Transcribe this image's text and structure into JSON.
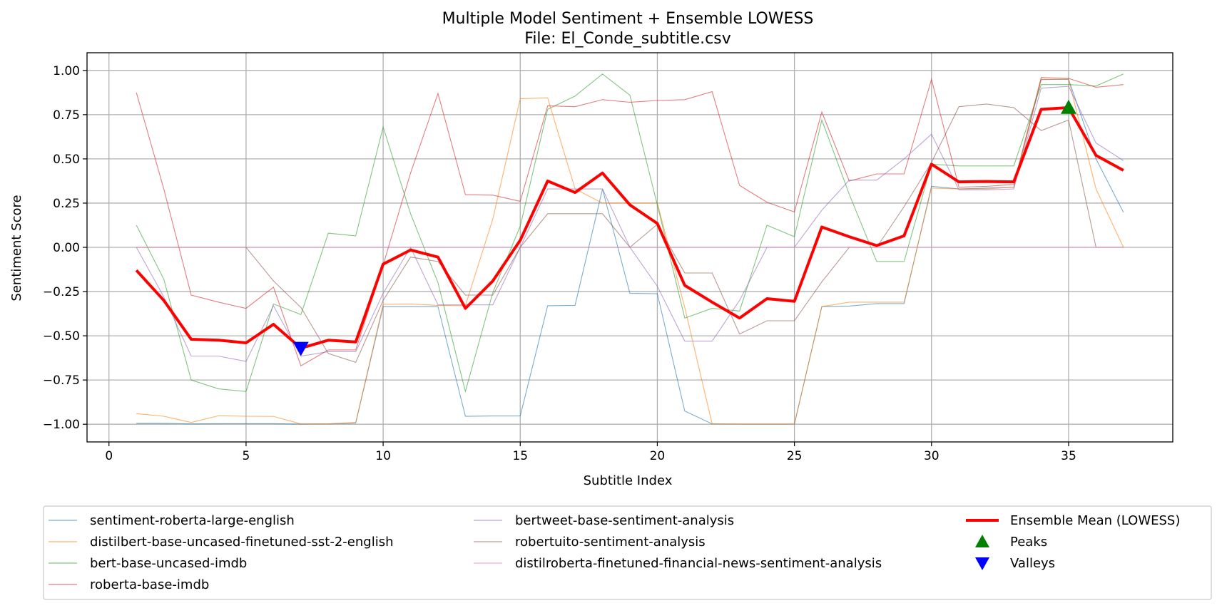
{
  "chart_data": {
    "type": "line",
    "title": "Multiple Model Sentiment + Ensemble LOWESS",
    "subtitle": "File: El_Conde_subtitle.csv",
    "xlabel": "Subtitle Index",
    "ylabel": "Sentiment Score",
    "xlim": [
      -0.8,
      38.8
    ],
    "ylim": [
      -1.1,
      1.1
    ],
    "xticks": [
      0,
      5,
      10,
      15,
      20,
      25,
      30,
      35
    ],
    "yticks": [
      -1.0,
      -0.75,
      -0.5,
      -0.25,
      0.0,
      0.25,
      0.5,
      0.75,
      1.0
    ],
    "xtick_labels": [
      "0",
      "5",
      "10",
      "15",
      "20",
      "25",
      "30",
      "35"
    ],
    "ytick_labels": [
      "−1.00",
      "−0.75",
      "−0.50",
      "−0.25",
      "0.00",
      "0.25",
      "0.50",
      "0.75",
      "1.00"
    ],
    "grid": true,
    "legend_position": "bottom",
    "x": [
      1,
      2,
      3,
      4,
      5,
      6,
      7,
      8,
      9,
      10,
      11,
      12,
      13,
      14,
      15,
      16,
      17,
      18,
      19,
      20,
      21,
      22,
      23,
      24,
      25,
      26,
      27,
      28,
      29,
      30,
      31,
      32,
      33,
      34,
      35,
      36,
      37
    ],
    "series": [
      {
        "name": "sentiment-roberta-large-english",
        "color": "#1f77b4",
        "values": [
          -0.995,
          -0.995,
          -0.998,
          -0.997,
          -0.997,
          -0.997,
          -0.999,
          -0.998,
          -0.993,
          -0.335,
          -0.335,
          -0.335,
          -0.955,
          -0.953,
          -0.953,
          -0.33,
          -0.328,
          0.33,
          -0.26,
          -0.262,
          -0.925,
          -0.998,
          -0.999,
          -0.999,
          -0.999,
          -0.335,
          -0.332,
          -0.318,
          -0.318,
          0.345,
          0.33,
          0.335,
          0.34,
          0.948,
          0.95,
          0.5,
          0.198
        ]
      },
      {
        "name": "distilbert-base-uncased-finetuned-sst-2-english",
        "color": "#ff7f0e",
        "values": [
          -0.94,
          -0.955,
          -0.99,
          -0.952,
          -0.955,
          -0.956,
          -0.998,
          -0.998,
          -0.99,
          -0.322,
          -0.32,
          -0.328,
          -0.33,
          0.16,
          0.84,
          0.845,
          0.33,
          0.25,
          0.25,
          0.25,
          -0.34,
          -0.999,
          -0.999,
          -0.999,
          -0.999,
          -0.335,
          -0.31,
          -0.31,
          -0.31,
          0.335,
          0.33,
          0.33,
          0.34,
          0.95,
          0.95,
          0.33,
          0.0
        ]
      },
      {
        "name": "bert-base-uncased-imdb",
        "color": "#2ca02c",
        "values": [
          0.125,
          -0.18,
          -0.75,
          -0.8,
          -0.815,
          -0.32,
          -0.38,
          0.08,
          0.065,
          0.68,
          0.19,
          -0.2,
          -0.815,
          -0.255,
          0.12,
          0.78,
          0.855,
          0.98,
          0.86,
          0.24,
          -0.4,
          -0.345,
          -0.36,
          0.125,
          0.06,
          0.72,
          0.3,
          -0.08,
          -0.08,
          0.47,
          0.46,
          0.46,
          0.46,
          0.92,
          0.92,
          0.912,
          0.98
        ]
      },
      {
        "name": "roberta-base-imdb",
        "color": "#d62728",
        "values": [
          0.875,
          0.33,
          -0.27,
          -0.31,
          -0.345,
          -0.225,
          -0.67,
          -0.58,
          -0.58,
          -0.1,
          0.42,
          0.87,
          0.298,
          0.295,
          0.26,
          0.8,
          0.795,
          0.835,
          0.82,
          0.83,
          0.835,
          0.88,
          0.35,
          0.255,
          0.2,
          0.765,
          0.375,
          0.415,
          0.415,
          0.95,
          0.34,
          0.345,
          0.355,
          0.96,
          0.955,
          0.905,
          0.92
        ]
      },
      {
        "name": "bertweet-base-sentiment-analysis",
        "color": "#9467bd",
        "values": [
          0.0,
          -0.28,
          -0.615,
          -0.615,
          -0.645,
          -0.33,
          -0.615,
          -0.59,
          -0.59,
          -0.26,
          0.0,
          -0.325,
          -0.325,
          -0.325,
          0.0,
          0.33,
          0.33,
          0.33,
          0.0,
          -0.22,
          -0.53,
          -0.53,
          -0.3,
          0.0,
          0.0,
          0.21,
          0.38,
          0.38,
          0.5,
          0.64,
          0.325,
          0.325,
          0.33,
          0.9,
          0.91,
          0.59,
          0.49
        ]
      },
      {
        "name": "robertuito-sentiment-analysis",
        "color": "#8c564b",
        "values": [
          0.0,
          0.0,
          0.0,
          0.0,
          0.0,
          -0.19,
          -0.34,
          -0.6,
          -0.65,
          -0.3,
          -0.055,
          -0.08,
          -0.27,
          -0.27,
          0.0,
          0.19,
          0.19,
          0.19,
          0.0,
          0.13,
          -0.145,
          -0.145,
          -0.49,
          -0.415,
          -0.415,
          -0.195,
          0.0,
          0.0,
          0.23,
          0.48,
          0.795,
          0.81,
          0.79,
          0.66,
          0.72,
          0.0,
          0.0
        ]
      },
      {
        "name": "distilroberta-finetuned-financial-news-sentiment-analysis",
        "color": "#e377c2",
        "values": [
          0.0,
          0.0,
          0.0,
          0.0,
          0.0,
          0.0,
          0.0,
          0.0,
          0.0,
          0.0,
          0.0,
          0.0,
          0.0,
          0.0,
          0.0,
          0.0,
          0.0,
          0.0,
          0.0,
          0.0,
          0.0,
          0.0,
          0.0,
          0.0,
          0.0,
          0.0,
          0.0,
          0.0,
          0.0,
          0.0,
          0.0,
          0.0,
          0.0,
          0.0,
          0.0,
          0.0,
          0.0
        ]
      }
    ],
    "ensemble": {
      "name": "Ensemble Mean (LOWESS)",
      "color": "#ff0000",
      "values": [
        -0.13,
        -0.3,
        -0.52,
        -0.525,
        -0.54,
        -0.435,
        -0.57,
        -0.525,
        -0.535,
        -0.095,
        -0.015,
        -0.055,
        -0.345,
        -0.19,
        0.04,
        0.375,
        0.31,
        0.42,
        0.24,
        0.135,
        -0.215,
        -0.31,
        -0.4,
        -0.29,
        -0.305,
        0.115,
        0.06,
        0.01,
        0.065,
        0.47,
        0.37,
        0.372,
        0.37,
        0.78,
        0.79,
        0.52,
        0.435
      ]
    },
    "peaks": {
      "name": "Peaks",
      "color": "#008000",
      "points": [
        [
          35,
          0.79
        ]
      ]
    },
    "valleys": {
      "name": "Valleys",
      "color": "#0000ff",
      "points": [
        [
          7,
          -0.57
        ]
      ]
    }
  }
}
